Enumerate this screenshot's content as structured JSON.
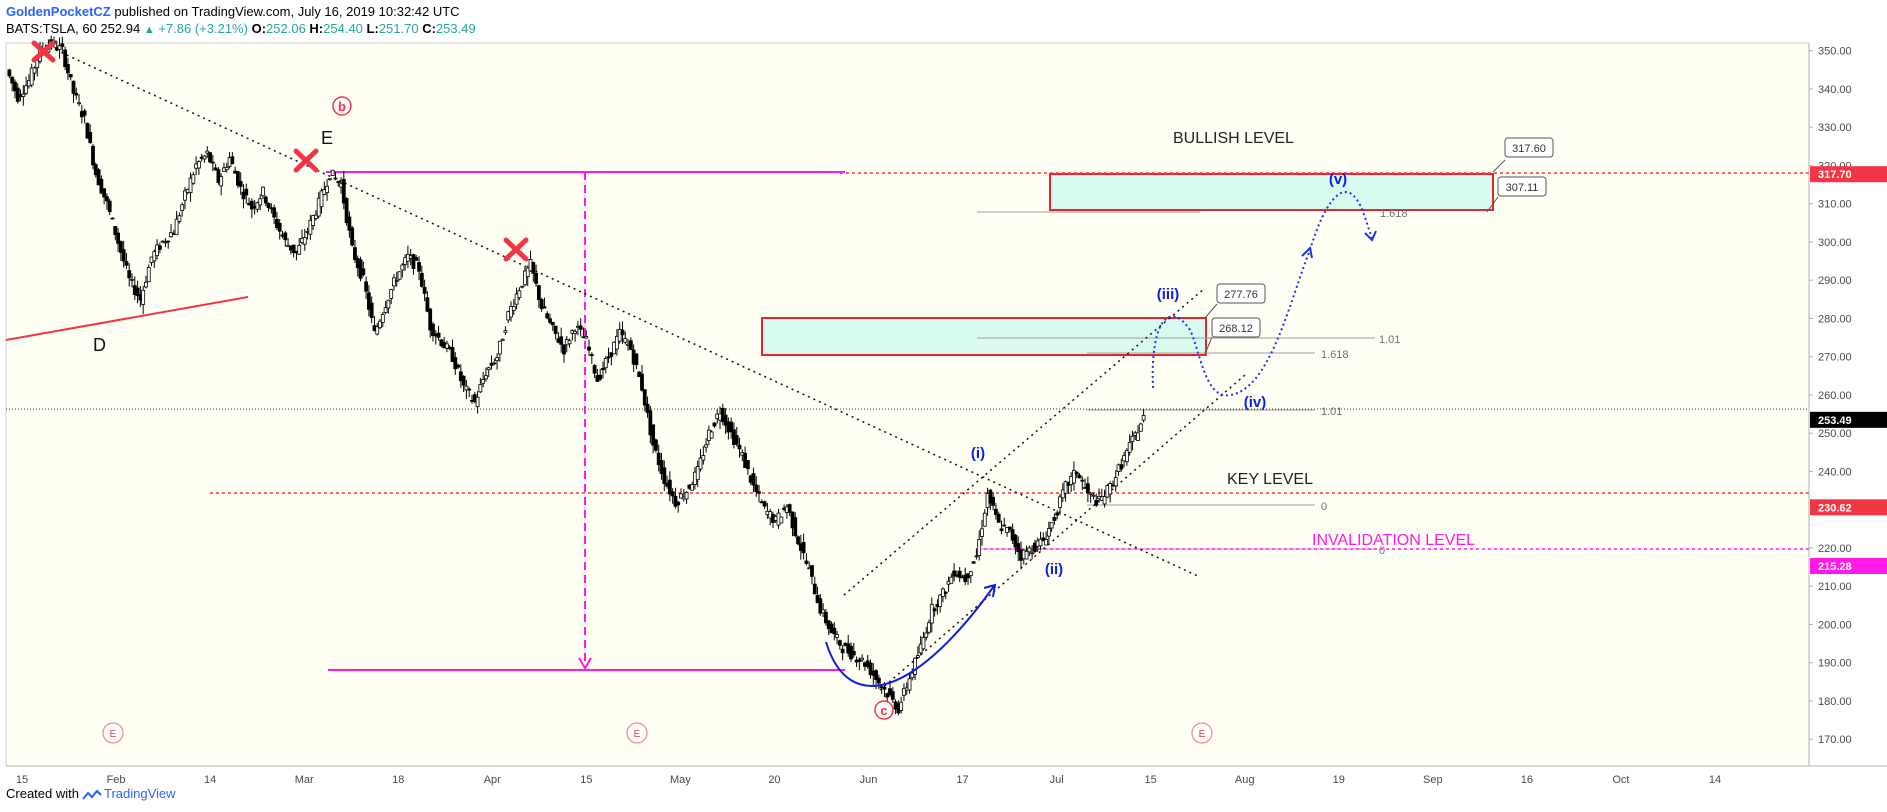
{
  "header": {
    "author": "GoldenPocketCZ",
    "published": "published on TradingView.com, July 16, 2019 10:32:42 UTC"
  },
  "ohlc": {
    "symbol": "BATS:TSLA, 60",
    "last": "252.94",
    "change": "+7.86 (+3.21%)",
    "o_label": "O:",
    "o": "252.06",
    "h_label": "H:",
    "h": "254.40",
    "l_label": "L:",
    "l": "251.70",
    "c_label": "C:",
    "c": "253.49"
  },
  "footer": {
    "created": "Created with",
    "brand": "TradingView"
  },
  "colors": {
    "bg": "#ffffff",
    "plot_bg": "#fffff4",
    "candle": "#000000",
    "red": "#f23645",
    "magenta": "#ff1ae8",
    "blue": "#0d1fdb",
    "box_fill": "#d9fbef",
    "box_border": "#e3262e"
  },
  "chart_data": {
    "type": "candlestick",
    "symbol": "BATS:TSLA",
    "interval": "60",
    "ylim": [
      163,
      352
    ],
    "y_ticks": [
      "350.00",
      "340.00",
      "330.00",
      "320.00",
      "310.00",
      "300.00",
      "290.00",
      "280.00",
      "270.00",
      "260.00",
      "250.00",
      "240.00",
      "230.00",
      "220.00",
      "210.00",
      "200.00",
      "190.00",
      "180.00",
      "170.00"
    ],
    "x_ticks": [
      "15",
      "Feb",
      "14",
      "Mar",
      "18",
      "Apr",
      "15",
      "May",
      "20",
      "Jun",
      "17",
      "Jul",
      "15",
      "Aug",
      "19",
      "Sep",
      "16",
      "Oct",
      "14"
    ],
    "price_path": [
      [
        0,
        345
      ],
      [
        2,
        338
      ],
      [
        4,
        342
      ],
      [
        6,
        350
      ],
      [
        8,
        352
      ],
      [
        10,
        350
      ],
      [
        12,
        339
      ],
      [
        14,
        332
      ],
      [
        16,
        318
      ],
      [
        18,
        310
      ],
      [
        20,
        300
      ],
      [
        22,
        290
      ],
      [
        24,
        285
      ],
      [
        26,
        296
      ],
      [
        28,
        300
      ],
      [
        30,
        303
      ],
      [
        32,
        312
      ],
      [
        34,
        320
      ],
      [
        36,
        323
      ],
      [
        38,
        316
      ],
      [
        40,
        322
      ],
      [
        42,
        314
      ],
      [
        44,
        309
      ],
      [
        46,
        313
      ],
      [
        48,
        306
      ],
      [
        50,
        300
      ],
      [
        52,
        297
      ],
      [
        54,
        303
      ],
      [
        56,
        310
      ],
      [
        58,
        318
      ],
      [
        60,
        315
      ],
      [
        62,
        298
      ],
      [
        64,
        290
      ],
      [
        66,
        276
      ],
      [
        68,
        284
      ],
      [
        70,
        291
      ],
      [
        72,
        296
      ],
      [
        74,
        293
      ],
      [
        76,
        278
      ],
      [
        78,
        274
      ],
      [
        80,
        270
      ],
      [
        82,
        262
      ],
      [
        84,
        258
      ],
      [
        86,
        266
      ],
      [
        88,
        270
      ],
      [
        90,
        281
      ],
      [
        92,
        288
      ],
      [
        94,
        294
      ],
      [
        96,
        283
      ],
      [
        98,
        277
      ],
      [
        100,
        272
      ],
      [
        102,
        278
      ],
      [
        104,
        274
      ],
      [
        106,
        264
      ],
      [
        108,
        270
      ],
      [
        110,
        276
      ],
      [
        112,
        272
      ],
      [
        114,
        262
      ],
      [
        116,
        247
      ],
      [
        118,
        238
      ],
      [
        120,
        232
      ],
      [
        122,
        235
      ],
      [
        124,
        240
      ],
      [
        126,
        250
      ],
      [
        128,
        256
      ],
      [
        130,
        250
      ],
      [
        132,
        244
      ],
      [
        134,
        236
      ],
      [
        136,
        230
      ],
      [
        138,
        227
      ],
      [
        140,
        231
      ],
      [
        142,
        222
      ],
      [
        144,
        214
      ],
      [
        146,
        204
      ],
      [
        148,
        198
      ],
      [
        150,
        194
      ],
      [
        152,
        192
      ],
      [
        154,
        190
      ],
      [
        156,
        186
      ],
      [
        158,
        182
      ],
      [
        160,
        178
      ],
      [
        162,
        186
      ],
      [
        164,
        194
      ],
      [
        166,
        204
      ],
      [
        168,
        208
      ],
      [
        170,
        214
      ],
      [
        172,
        212
      ],
      [
        174,
        218
      ],
      [
        176,
        234
      ],
      [
        178,
        226
      ],
      [
        180,
        224
      ],
      [
        182,
        218
      ],
      [
        184,
        220
      ],
      [
        186,
        222
      ],
      [
        188,
        228
      ],
      [
        190,
        236
      ],
      [
        192,
        240
      ],
      [
        194,
        234
      ],
      [
        196,
        232
      ],
      [
        198,
        236
      ],
      [
        200,
        242
      ],
      [
        202,
        248
      ],
      [
        204,
        254
      ]
    ],
    "price_labels": [
      {
        "value": 317.7,
        "text": "317.70",
        "color": "#f23645"
      },
      {
        "value": 253.49,
        "text": "253.49",
        "color": "#000000"
      },
      {
        "value": 230.62,
        "text": "230.62",
        "color": "#f23645"
      },
      {
        "value": 215.28,
        "text": "215.28",
        "color": "#ff1ae8"
      }
    ],
    "levels": {
      "bullish": {
        "text": "BULLISH LEVEL",
        "value": 317.7
      },
      "key": {
        "text": "KEY LEVEL",
        "value": 230.62
      },
      "invalidation": {
        "text": "INVALIDATION LEVEL",
        "value": 215.28
      },
      "target_box_high": [
        307.11,
        317.6
      ],
      "target_box_mid": [
        268.12,
        277.76
      ]
    },
    "callouts": [
      "317.60",
      "307.11",
      "277.76",
      "268.12"
    ],
    "fib_labels": [
      "1.618",
      "1.01",
      "1.618",
      "1.01",
      "0",
      "0"
    ],
    "wave_labels_black": [
      "D",
      "E"
    ],
    "wave_labels_red": [
      "b",
      "c"
    ],
    "wave_labels_blue": [
      "(i)",
      "(ii)",
      "(iii)",
      "(iv)",
      "(v)"
    ],
    "event_markers": [
      "E",
      "E",
      "E"
    ]
  }
}
